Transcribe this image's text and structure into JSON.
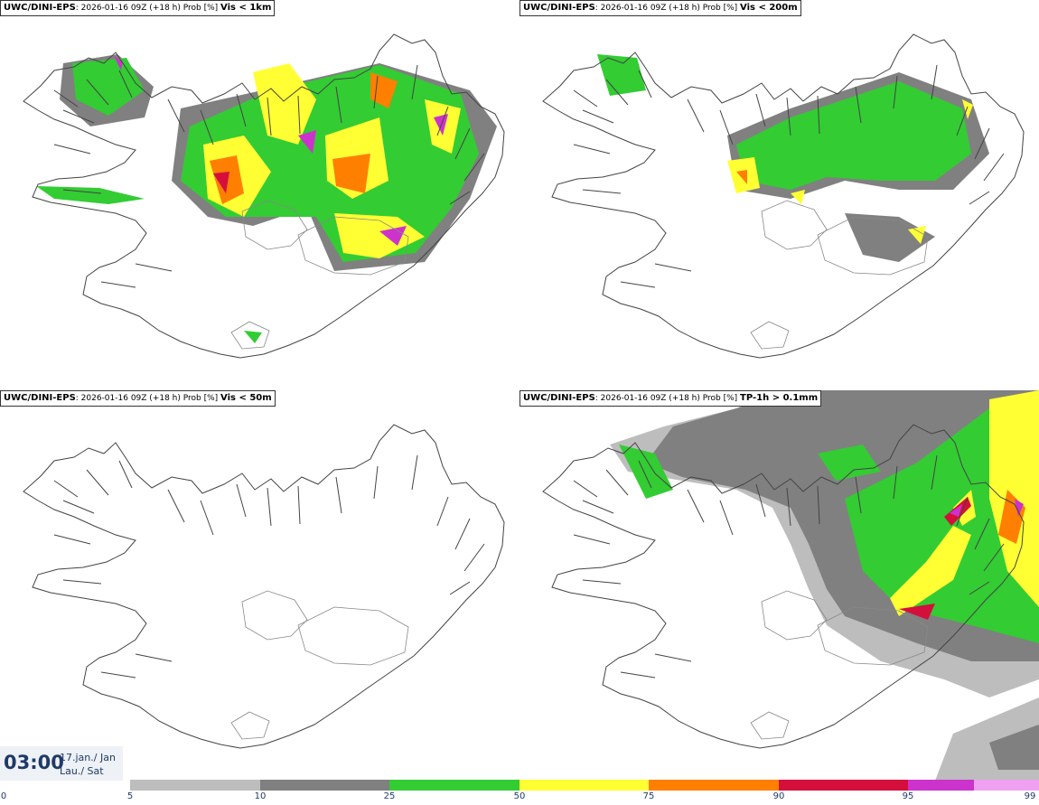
{
  "panels": [
    {
      "model": "UWC/DINI-EPS",
      "info": ": 2026-01-16 09Z (+18 h) Prob [%]",
      "variable": "Vis < 1km"
    },
    {
      "model": "UWC/DINI-EPS",
      "info": ": 2026-01-16 09Z (+18 h) Prob [%]",
      "variable": "Vis < 200m"
    },
    {
      "model": "UWC/DINI-EPS",
      "info": ": 2026-01-16 09Z (+18 h) Prob [%]",
      "variable": "Vis < 50m"
    },
    {
      "model": "UWC/DINI-EPS",
      "info": ": 2026-01-16 09Z (+18 h) Prob [%]",
      "variable": "TP-1h > 0.1mm"
    }
  ],
  "valid_time": {
    "time": "03:00",
    "date_line1": "17.jan./ Jan",
    "date_line2": "Lau./ Sat"
  },
  "legend": {
    "ticks": [
      "0",
      "5",
      "10",
      "25",
      "50",
      "75",
      "90",
      "95",
      "99"
    ],
    "colors": [
      "#bdbdbd",
      "#808080",
      "#33cc33",
      "#ffff33",
      "#ff7f00",
      "#d40f3c",
      "#cc33cc",
      "#f0a0f0"
    ]
  }
}
